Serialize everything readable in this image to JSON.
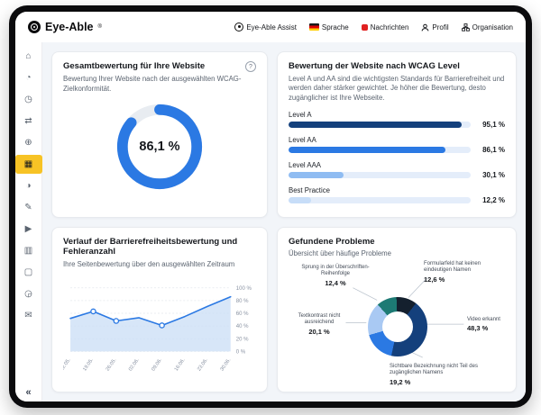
{
  "brand": {
    "name": "Eye-Able",
    "registered": "®"
  },
  "topbar": {
    "assist": "Eye-Able Assist",
    "language": "Sprache",
    "messages": "Nachrichten",
    "profile": "Profil",
    "organisation": "Organisation"
  },
  "sidebar": {
    "items": [
      {
        "name": "home",
        "glyph": "⌂",
        "active": false
      },
      {
        "name": "dashboard",
        "glyph": "◔",
        "active": false
      },
      {
        "name": "history",
        "glyph": "◷",
        "active": false
      },
      {
        "name": "translate",
        "glyph": "⇄",
        "active": false
      },
      {
        "name": "web",
        "glyph": "⊕",
        "active": false
      },
      {
        "name": "report",
        "glyph": "▦",
        "active": true
      },
      {
        "name": "contrast",
        "glyph": "◑",
        "active": false
      },
      {
        "name": "edit",
        "glyph": "✎",
        "active": false
      },
      {
        "name": "launch",
        "glyph": "▶",
        "active": false
      },
      {
        "name": "stats",
        "glyph": "▥",
        "active": false
      },
      {
        "name": "documents",
        "glyph": "▢",
        "active": false
      },
      {
        "name": "schedule",
        "glyph": "◶",
        "active": false
      },
      {
        "name": "support",
        "glyph": "✉",
        "active": false
      }
    ],
    "collapse_glyph": "«"
  },
  "cards": {
    "overall": {
      "title": "Gesamtbewertung für Ihre Website",
      "subtitle": "Bewertung Ihrer Website nach der ausgewählten WCAG-Zielkonformität.",
      "help_glyph": "?",
      "value": 86.1,
      "display": "86,1 %"
    },
    "wcag": {
      "title": "Bewertung der Website nach WCAG Level",
      "description": "Level A und AA sind die wichtigsten Standards für Barrierefreiheit und werden daher stärker gewichtet. Je höher die Bewertung, desto zugänglicher ist Ihre Webseite.",
      "bars": [
        {
          "label": "Level A",
          "value": 95.1,
          "display": "95,1 %",
          "color": "#14407c"
        },
        {
          "label": "Level AA",
          "value": 86.1,
          "display": "86,1 %",
          "color": "#2b79e3"
        },
        {
          "label": "Level AAA",
          "value": 30.1,
          "display": "30,1 %",
          "color": "#8fbcf2"
        },
        {
          "label": "Best Practice",
          "value": 12.2,
          "display": "12,2 %",
          "color": "#c7ddf8"
        }
      ]
    },
    "history": {
      "title": "Verlauf der Barrierefreiheitsbewertung und Fehleranzahl",
      "subtitle": "Ihre Seitenbewertung über den ausgewählten Zeitraum"
    },
    "problems": {
      "title": "Gefundene Probleme",
      "subtitle": "Übersicht über häufige Probleme"
    }
  },
  "chart_data": [
    {
      "id": "overall",
      "type": "donut",
      "title": "Gesamtbewertung für Ihre Website",
      "value": 86.1,
      "display": "86,1 %",
      "color": "#2b79e3",
      "track": "#e8ecf1"
    },
    {
      "id": "wcag",
      "type": "bar",
      "orientation": "horizontal",
      "categories": [
        "Level A",
        "Level AA",
        "Level AAA",
        "Best Practice"
      ],
      "values": [
        95.1,
        86.1,
        30.1,
        12.2
      ],
      "xlim": [
        0,
        100
      ]
    },
    {
      "id": "history",
      "type": "area-line",
      "x": [
        "12.05.",
        "19.05.",
        "26.05.",
        "02.06.",
        "09.06.",
        "16.06.",
        "23.06.",
        "30.06."
      ],
      "values": [
        52,
        63,
        48,
        53,
        41,
        55,
        71,
        86
      ],
      "marker_indices": [
        1,
        2,
        4
      ],
      "ylim": [
        0,
        100
      ],
      "grid": true,
      "line_color": "#2b79e3",
      "area_color": "#c9ddf6"
    },
    {
      "id": "problems",
      "type": "donut",
      "slices": [
        {
          "label": "Sprung in der Überschriften-Reihenfolge",
          "display": "12,4 %",
          "value": 12.4,
          "color": "#1d7a74"
        },
        {
          "label": "Formularfeld hat keinen eindeutigen Namen",
          "display": "12,6 %",
          "value": 12.6,
          "color": "#14202e"
        },
        {
          "label": "Video erkannt",
          "display": "48,3 %",
          "value": 48.3,
          "color": "#14407c"
        },
        {
          "label": "Sichtbare Bezeichnung nicht Teil des zugänglichen Namens",
          "display": "19,2 %",
          "value": 19.2,
          "color": "#2b79e3"
        },
        {
          "label": "Textkontrast nicht ausreichend",
          "display": "20,1 %",
          "value": 20.1,
          "color": "#a9c9f3"
        }
      ]
    }
  ]
}
